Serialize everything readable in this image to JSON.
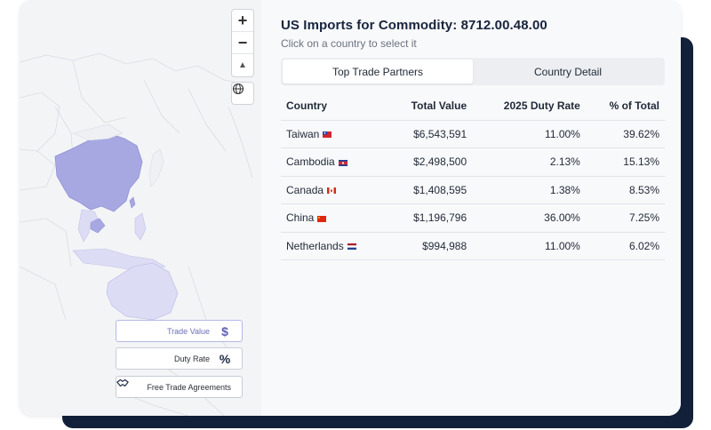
{
  "header": {
    "title": "US Imports for Commodity: 8712.00.48.00",
    "subtitle": "Click on a country to select it"
  },
  "tabs": [
    {
      "label": "Top Trade Partners",
      "active": true
    },
    {
      "label": "Country Detail",
      "active": false
    }
  ],
  "table": {
    "columns": [
      "Country",
      "Total Value",
      "2025 Duty Rate",
      "% of Total"
    ],
    "rows": [
      {
        "country": "Taiwan",
        "flag": "taiwan-flag",
        "value": "$6,543,591",
        "duty": "11.00%",
        "pct": "39.62%"
      },
      {
        "country": "Cambodia",
        "flag": "cambodia-flag",
        "value": "$2,498,500",
        "duty": "2.13%",
        "pct": "15.13%"
      },
      {
        "country": "Canada",
        "flag": "canada-flag",
        "value": "$1,408,595",
        "duty": "1.38%",
        "pct": "8.53%"
      },
      {
        "country": "China",
        "flag": "china-flag",
        "value": "$1,196,796",
        "duty": "36.00%",
        "pct": "7.25%"
      },
      {
        "country": "Netherlands",
        "flag": "netherlands-flag",
        "value": "$994,988",
        "duty": "11.00%",
        "pct": "6.02%"
      }
    ]
  },
  "map": {
    "zoom_in": "+",
    "zoom_out": "−",
    "north": "▲",
    "globe_icon": "globe-icon",
    "legend": [
      {
        "label": "Trade Value",
        "icon": "dollar-icon",
        "active": true
      },
      {
        "label": "Duty Rate",
        "icon": "percent-icon",
        "active": false
      },
      {
        "label": "Free Trade Agreements",
        "icon": "handshake-icon",
        "active": false
      }
    ]
  },
  "colors": {
    "highlight_strong": "#a7a8e2",
    "highlight_light": "#dcdcf4",
    "land": "#f3f4f6",
    "dark_accent": "#13203a"
  }
}
